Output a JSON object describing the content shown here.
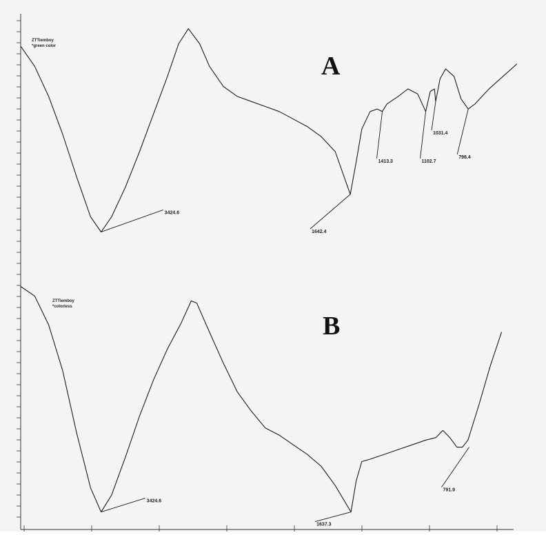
{
  "chart_data": [
    {
      "type": "line",
      "panel_label": "A",
      "sample_label": [
        "ZTTiemboy",
        "*green color"
      ],
      "x_direction": "decreasing wavenumber (cm-1)",
      "series": [
        {
          "points": [
            [
              4000,
              92
            ],
            [
              3900,
              84
            ],
            [
              3800,
              72
            ],
            [
              3700,
              57
            ],
            [
              3600,
              40
            ],
            [
              3500,
              24
            ],
            [
              3424.6,
              18
            ],
            [
              3350,
              24
            ],
            [
              3250,
              36
            ],
            [
              3150,
              50
            ],
            [
              3050,
              65
            ],
            [
              2950,
              80
            ],
            [
              2870,
              93
            ],
            [
              2800,
              99
            ],
            [
              2720,
              93
            ],
            [
              2650,
              84
            ],
            [
              2550,
              76
            ],
            [
              2450,
              72
            ],
            [
              2350,
              70
            ],
            [
              2250,
              68
            ],
            [
              2150,
              66
            ],
            [
              2050,
              63
            ],
            [
              1950,
              60
            ],
            [
              1850,
              56
            ],
            [
              1750,
              50
            ],
            [
              1642.4,
              33
            ],
            [
              1600,
              46
            ],
            [
              1560,
              59
            ],
            [
              1500,
              66
            ],
            [
              1450,
              67
            ],
            [
              1413.3,
              66
            ],
            [
              1380,
              69
            ],
            [
              1300,
              72
            ],
            [
              1230,
              75
            ],
            [
              1160,
              73
            ],
            [
              1102.7,
              66
            ],
            [
              1070,
              74
            ],
            [
              1040,
              75
            ],
            [
              1031.4,
              70
            ],
            [
              1000,
              79
            ],
            [
              960,
              83
            ],
            [
              900,
              80
            ],
            [
              850,
              71
            ],
            [
              798.4,
              67
            ],
            [
              750,
              69
            ],
            [
              650,
              75
            ],
            [
              550,
              80
            ],
            [
              450,
              85
            ]
          ]
        }
      ],
      "peak_labels": [
        {
          "x": 3424.6,
          "y": 18,
          "text": "3424.6"
        },
        {
          "x": 1642.4,
          "y": 33,
          "text": "1642.4"
        },
        {
          "x": 1413.3,
          "y": 66,
          "text": "1413.3"
        },
        {
          "x": 1102.7,
          "y": 66,
          "text": "1102.7"
        },
        {
          "x": 1031.4,
          "y": 70,
          "text": "1031.4"
        },
        {
          "x": 798.4,
          "y": 67,
          "text": "798.4"
        }
      ]
    },
    {
      "type": "line",
      "panel_label": "B",
      "sample_label": [
        "ZTTiemboy",
        "*colorless"
      ],
      "x_direction": "decreasing wavenumber (cm-1)",
      "series": [
        {
          "points": [
            [
              4000,
              99
            ],
            [
              3900,
              95
            ],
            [
              3800,
              83
            ],
            [
              3700,
              64
            ],
            [
              3600,
              38
            ],
            [
              3500,
              15
            ],
            [
              3424.6,
              5
            ],
            [
              3350,
              12
            ],
            [
              3250,
              28
            ],
            [
              3150,
              45
            ],
            [
              3050,
              60
            ],
            [
              2950,
              73
            ],
            [
              2850,
              84
            ],
            [
              2780,
              93
            ],
            [
              2740,
              92
            ],
            [
              2650,
              80
            ],
            [
              2550,
              67
            ],
            [
              2450,
              55
            ],
            [
              2350,
              47
            ],
            [
              2250,
              40
            ],
            [
              2150,
              37
            ],
            [
              2050,
              33
            ],
            [
              1950,
              29
            ],
            [
              1850,
              24
            ],
            [
              1750,
              16
            ],
            [
              1637.3,
              5
            ],
            [
              1600,
              18
            ],
            [
              1560,
              26
            ],
            [
              1500,
              27
            ],
            [
              1400,
              29
            ],
            [
              1300,
              31
            ],
            [
              1200,
              33
            ],
            [
              1100,
              35
            ],
            [
              1030,
              36
            ],
            [
              980,
              39
            ],
            [
              930,
              36
            ],
            [
              880,
              32
            ],
            [
              840,
              32
            ],
            [
              800,
              35
            ],
            [
              720,
              50
            ],
            [
              640,
              66
            ],
            [
              560,
              80
            ]
          ]
        }
      ],
      "peak_labels": [
        {
          "x": 3424.6,
          "y": 5,
          "text": "3424.6"
        },
        {
          "x": 1637.3,
          "y": 5,
          "text": "1637.3"
        },
        {
          "x": 791.9,
          "y": 32,
          "text": "791.9"
        }
      ]
    }
  ]
}
